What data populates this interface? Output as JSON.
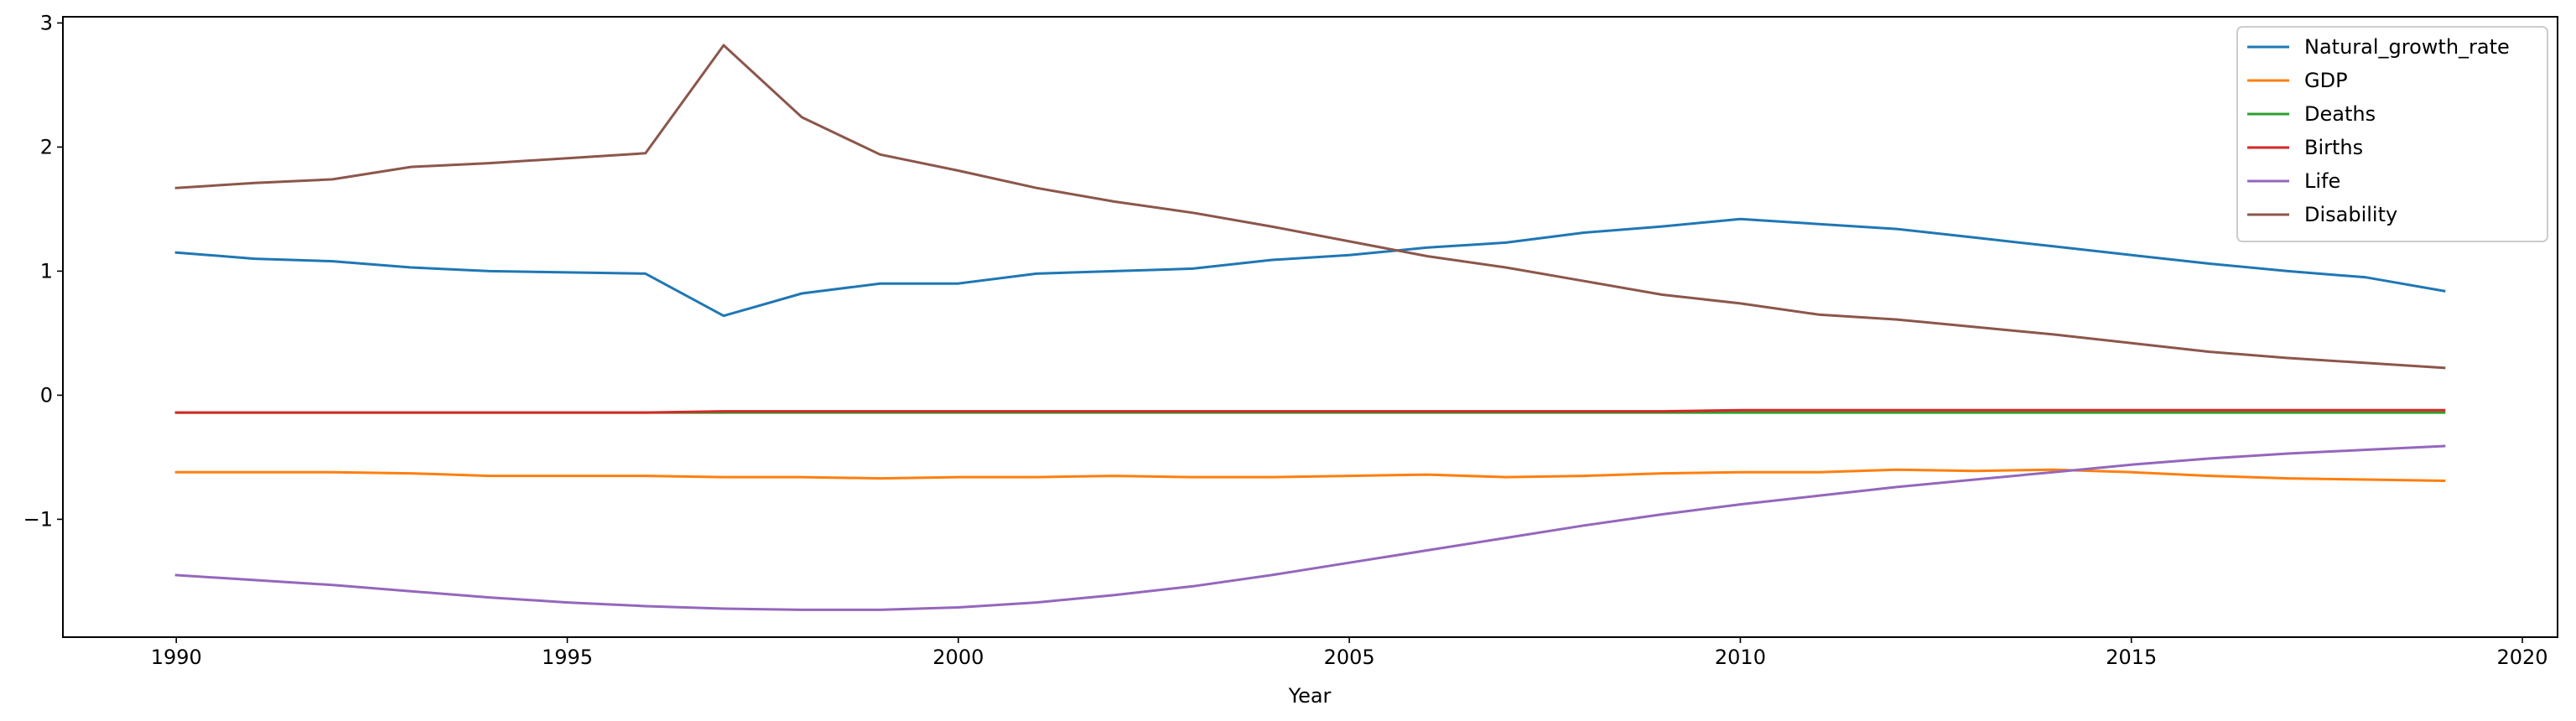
{
  "chart_data": {
    "type": "line",
    "title": "",
    "xlabel": "Year",
    "ylabel": "",
    "x": [
      1990,
      1991,
      1992,
      1993,
      1994,
      1995,
      1996,
      1997,
      1998,
      1999,
      2000,
      2001,
      2002,
      2003,
      2004,
      2005,
      2006,
      2007,
      2008,
      2009,
      2010,
      2011,
      2012,
      2013,
      2014,
      2015,
      2016,
      2017,
      2018,
      2019
    ],
    "xlim": [
      1988.55,
      2020.45
    ],
    "ylim": [
      -1.95,
      3.05
    ],
    "xticks": [
      1990,
      1995,
      2000,
      2005,
      2010,
      2015,
      2020
    ],
    "xtick_labels": [
      "1990",
      "1995",
      "2000",
      "2005",
      "2010",
      "2015",
      "2020"
    ],
    "yticks": [
      -1,
      0,
      1,
      2,
      3
    ],
    "ytick_labels": [
      "−1",
      "0",
      "1",
      "2",
      "3"
    ],
    "grid": false,
    "legend_position": "top-right",
    "series": [
      {
        "name": "Natural_growth_rate",
        "color": "#1f77b4",
        "values": [
          1.15,
          1.1,
          1.08,
          1.03,
          1.0,
          0.99,
          0.98,
          0.64,
          0.82,
          0.9,
          0.9,
          0.98,
          1.0,
          1.02,
          1.09,
          1.13,
          1.19,
          1.23,
          1.31,
          1.36,
          1.42,
          1.38,
          1.34,
          1.27,
          1.2,
          1.13,
          1.06,
          1.0,
          0.95,
          0.84
        ]
      },
      {
        "name": "GDP",
        "color": "#ff7f0e",
        "values": [
          -0.62,
          -0.62,
          -0.62,
          -0.63,
          -0.65,
          -0.65,
          -0.65,
          -0.66,
          -0.66,
          -0.67,
          -0.66,
          -0.66,
          -0.65,
          -0.66,
          -0.66,
          -0.65,
          -0.64,
          -0.66,
          -0.65,
          -0.63,
          -0.62,
          -0.62,
          -0.6,
          -0.61,
          -0.6,
          -0.62,
          -0.65,
          -0.67,
          -0.68,
          -0.69
        ]
      },
      {
        "name": "Deaths",
        "color": "#2ca02c",
        "values": [
          -0.14,
          -0.14,
          -0.14,
          -0.14,
          -0.14,
          -0.14,
          -0.14,
          -0.14,
          -0.14,
          -0.14,
          -0.14,
          -0.14,
          -0.14,
          -0.14,
          -0.14,
          -0.14,
          -0.14,
          -0.14,
          -0.14,
          -0.14,
          -0.14,
          -0.14,
          -0.14,
          -0.14,
          -0.14,
          -0.14,
          -0.14,
          -0.14,
          -0.14,
          -0.14
        ]
      },
      {
        "name": "Births",
        "color": "#d62728",
        "values": [
          -0.14,
          -0.14,
          -0.14,
          -0.14,
          -0.14,
          -0.14,
          -0.14,
          -0.13,
          -0.13,
          -0.13,
          -0.13,
          -0.13,
          -0.13,
          -0.13,
          -0.13,
          -0.13,
          -0.13,
          -0.13,
          -0.13,
          -0.13,
          -0.12,
          -0.12,
          -0.12,
          -0.12,
          -0.12,
          -0.12,
          -0.12,
          -0.12,
          -0.12,
          -0.12
        ]
      },
      {
        "name": "Life",
        "color": "#9467bd",
        "values": [
          -1.45,
          -1.49,
          -1.53,
          -1.58,
          -1.63,
          -1.67,
          -1.7,
          -1.72,
          -1.73,
          -1.73,
          -1.71,
          -1.67,
          -1.61,
          -1.54,
          -1.45,
          -1.35,
          -1.25,
          -1.15,
          -1.05,
          -0.96,
          -0.88,
          -0.81,
          -0.74,
          -0.68,
          -0.62,
          -0.56,
          -0.51,
          -0.47,
          -0.44,
          -0.41
        ]
      },
      {
        "name": "Disability",
        "color": "#8c564b",
        "values": [
          1.67,
          1.71,
          1.74,
          1.84,
          1.87,
          1.91,
          1.95,
          2.82,
          2.24,
          1.94,
          1.81,
          1.67,
          1.56,
          1.47,
          1.36,
          1.24,
          1.12,
          1.03,
          0.92,
          0.81,
          0.74,
          0.65,
          0.61,
          0.55,
          0.49,
          0.42,
          0.35,
          0.3,
          0.26,
          0.22
        ]
      }
    ]
  }
}
